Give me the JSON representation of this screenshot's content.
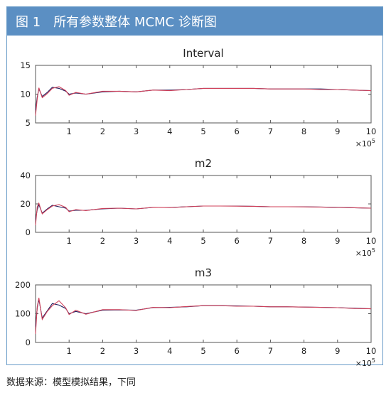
{
  "figure": {
    "label": "图 1",
    "title": "所有参数整体 MCMC 诊断图"
  },
  "source_note": "数据来源：模型模拟结果，下同",
  "colors": {
    "header_bg": "#5b8fc3",
    "series_a": "#1f1f5e",
    "series_b": "#d0415a"
  },
  "chart_data": [
    {
      "type": "line",
      "title": "Interval",
      "xlabel": "",
      "ylabel": "",
      "x_multiplier": "×10",
      "x_exponent": "5",
      "xlim": [
        0,
        10
      ],
      "ylim": [
        5,
        15
      ],
      "xticks": [
        1,
        2,
        3,
        4,
        5,
        6,
        7,
        8,
        9,
        10
      ],
      "yticks": [
        5,
        10,
        15
      ],
      "series": [
        {
          "x": [
            0.0,
            0.05,
            0.1,
            0.2,
            0.35,
            0.5,
            0.7,
            0.9,
            1.0,
            1.2,
            1.5,
            2.0,
            2.5,
            3.0,
            3.5,
            4.0,
            4.5,
            5.0,
            5.5,
            6.0,
            6.5,
            7.0,
            7.5,
            8.0,
            8.5,
            9.0,
            9.5,
            10.0
          ],
          "y": [
            7.2,
            9.5,
            10.9,
            9.6,
            10.3,
            11.2,
            11.0,
            10.5,
            10.0,
            10.2,
            10.0,
            10.4,
            10.5,
            10.4,
            10.7,
            10.7,
            10.8,
            11.0,
            11.0,
            11.0,
            11.0,
            10.9,
            10.9,
            10.9,
            10.9,
            10.8,
            10.7,
            10.6
          ]
        },
        {
          "x": [
            0.0,
            0.05,
            0.1,
            0.2,
            0.35,
            0.5,
            0.7,
            0.9,
            1.0,
            1.2,
            1.5,
            2.0,
            2.5,
            3.0,
            3.5,
            4.0,
            4.5,
            5.0,
            5.5,
            6.0,
            6.5,
            7.0,
            7.5,
            8.0,
            8.5,
            9.0,
            9.5,
            10.0
          ],
          "y": [
            6.3,
            9.2,
            11.1,
            9.4,
            10.1,
            11.0,
            11.3,
            10.6,
            9.8,
            10.3,
            10.0,
            10.5,
            10.5,
            10.4,
            10.7,
            10.6,
            10.8,
            11.0,
            11.0,
            11.0,
            11.0,
            10.9,
            10.9,
            10.9,
            10.8,
            10.8,
            10.7,
            10.6
          ]
        }
      ]
    },
    {
      "type": "line",
      "title": "m2",
      "xlabel": "",
      "ylabel": "",
      "x_multiplier": "×10",
      "x_exponent": "5",
      "xlim": [
        0,
        10
      ],
      "ylim": [
        0,
        40
      ],
      "xticks": [
        1,
        2,
        3,
        4,
        5,
        6,
        7,
        8,
        9,
        10
      ],
      "yticks": [
        0,
        20,
        40
      ],
      "series": [
        {
          "x": [
            0.0,
            0.05,
            0.1,
            0.2,
            0.35,
            0.5,
            0.7,
            0.9,
            1.0,
            1.2,
            1.5,
            2.0,
            2.5,
            3.0,
            3.5,
            4.0,
            4.5,
            5.0,
            5.5,
            6.0,
            6.5,
            7.0,
            7.5,
            8.0,
            8.5,
            9.0,
            9.5,
            10.0
          ],
          "y": [
            9.0,
            16.0,
            19.5,
            13.5,
            16.5,
            19.0,
            18.0,
            17.0,
            15.0,
            15.5,
            15.5,
            16.5,
            17.0,
            16.5,
            17.5,
            17.5,
            18.0,
            18.5,
            18.5,
            18.5,
            18.3,
            18.0,
            18.0,
            18.0,
            17.8,
            17.6,
            17.3,
            17.0
          ]
        },
        {
          "x": [
            0.0,
            0.05,
            0.1,
            0.2,
            0.35,
            0.5,
            0.7,
            0.9,
            1.0,
            1.2,
            1.5,
            2.0,
            2.5,
            3.0,
            3.5,
            4.0,
            4.5,
            5.0,
            5.5,
            6.0,
            6.5,
            7.0,
            7.5,
            8.0,
            8.5,
            9.0,
            9.5,
            10.0
          ],
          "y": [
            5.0,
            18.0,
            20.5,
            13.0,
            16.0,
            18.5,
            19.5,
            17.5,
            14.5,
            16.0,
            15.3,
            16.8,
            17.0,
            16.5,
            17.6,
            17.4,
            18.0,
            18.5,
            18.5,
            18.4,
            18.3,
            18.0,
            18.0,
            17.9,
            17.8,
            17.5,
            17.3,
            17.0
          ]
        }
      ]
    },
    {
      "type": "line",
      "title": "m3",
      "xlabel": "",
      "ylabel": "",
      "x_multiplier": "×10",
      "x_exponent": "5",
      "xlim": [
        0,
        10
      ],
      "ylim": [
        0,
        200
      ],
      "xticks": [
        1,
        2,
        3,
        4,
        5,
        6,
        7,
        8,
        9,
        10
      ],
      "yticks": [
        0,
        100,
        200
      ],
      "series": [
        {
          "x": [
            0.0,
            0.05,
            0.1,
            0.2,
            0.35,
            0.5,
            0.7,
            0.9,
            1.0,
            1.2,
            1.5,
            2.0,
            2.5,
            3.0,
            3.5,
            4.0,
            4.5,
            5.0,
            5.5,
            6.0,
            6.5,
            7.0,
            7.5,
            8.0,
            8.5,
            9.0,
            9.5,
            10.0
          ],
          "y": [
            55,
            120,
            150,
            85,
            110,
            135,
            130,
            118,
            100,
            108,
            100,
            112,
            113,
            112,
            121,
            122,
            124,
            128,
            128,
            127,
            126,
            124,
            124,
            123,
            122,
            121,
            119,
            117
          ]
        },
        {
          "x": [
            0.0,
            0.05,
            0.1,
            0.2,
            0.35,
            0.5,
            0.7,
            0.9,
            1.0,
            1.2,
            1.5,
            2.0,
            2.5,
            3.0,
            3.5,
            4.0,
            4.5,
            5.0,
            5.5,
            6.0,
            6.5,
            7.0,
            7.5,
            8.0,
            8.5,
            9.0,
            9.5,
            10.0
          ],
          "y": [
            30,
            125,
            155,
            80,
            108,
            128,
            145,
            120,
            97,
            112,
            98,
            114,
            114,
            111,
            122,
            121,
            125,
            128,
            128,
            126,
            126,
            124,
            124,
            123,
            122,
            121,
            118,
            117
          ]
        }
      ]
    }
  ]
}
